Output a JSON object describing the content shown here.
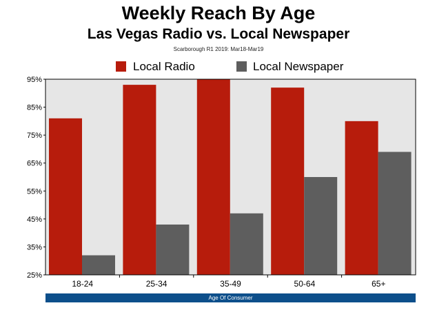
{
  "title": "Weekly Reach By Age",
  "subtitle": "Las Vegas Radio vs. Local Newspaper",
  "source": "Scarborough R1 2019: Mar18-Mar19",
  "colors": {
    "radio": "#b71c0c",
    "newspaper": "#5e5e5e",
    "plot_bg": "#e6e6e6",
    "axis_band": "#0d4f8b"
  },
  "chart_data": {
    "type": "bar",
    "title": "Weekly Reach By Age",
    "subtitle": "Las Vegas Radio vs. Local Newspaper",
    "xlabel": "Age Of Consumer",
    "ylabel": "",
    "categories": [
      "18-24",
      "25-34",
      "35-49",
      "50-64",
      "65+"
    ],
    "series": [
      {
        "name": "Local Radio",
        "values": [
          81,
          93,
          95,
          92,
          80
        ]
      },
      {
        "name": "Local Newspaper",
        "values": [
          32,
          43,
          47,
          60,
          69
        ]
      }
    ],
    "ylim": [
      25,
      95
    ],
    "yticks": [
      "25%",
      "35%",
      "45%",
      "55%",
      "65%",
      "75%",
      "85%",
      "95%"
    ],
    "grid": false,
    "legend": "top"
  }
}
